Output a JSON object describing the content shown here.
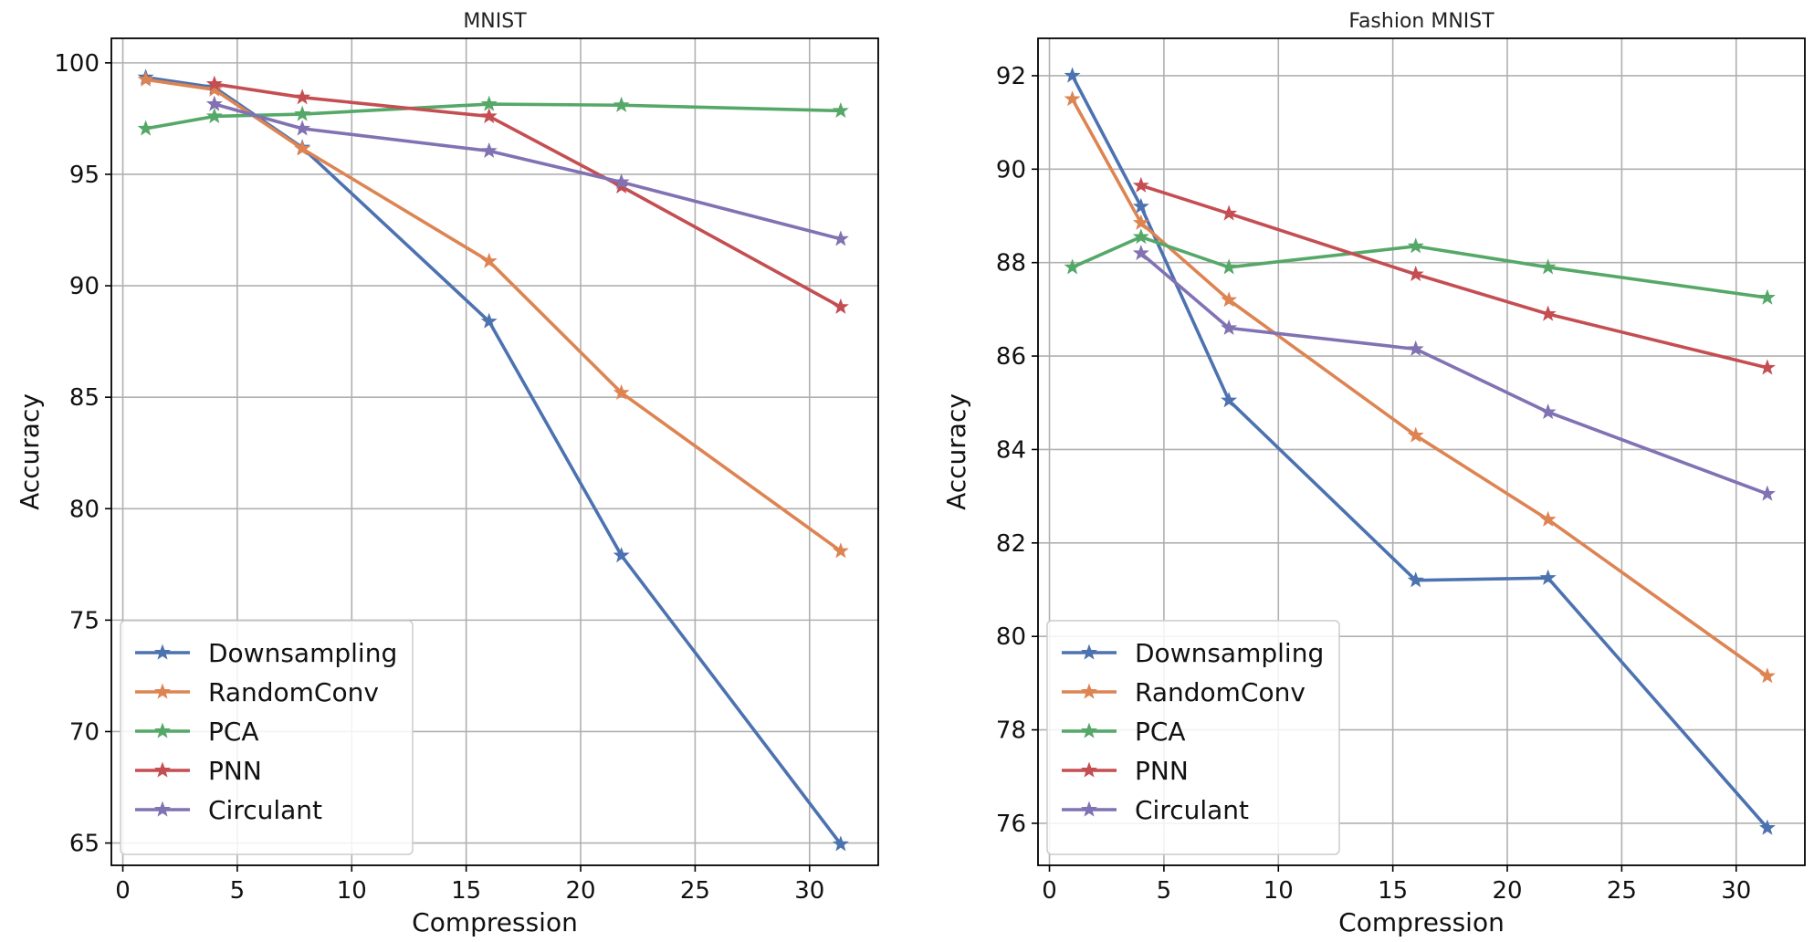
{
  "chart_data": [
    {
      "type": "line",
      "title": "MNIST",
      "xlabel": "Compression",
      "ylabel": "Accuracy",
      "xlim": [
        -0.5,
        33
      ],
      "ylim": [
        64,
        101.1
      ],
      "xticks": [
        0,
        5,
        10,
        15,
        20,
        25,
        30
      ],
      "yticks": [
        65,
        70,
        75,
        80,
        85,
        90,
        95,
        100
      ],
      "grid": true,
      "legend_position": "lower-left",
      "series": [
        {
          "name": "Downsampling",
          "color": "#4c72b0",
          "x": [
            1,
            4,
            7.84,
            16,
            21.78,
            31.36
          ],
          "y": [
            99.35,
            98.9,
            96.2,
            88.4,
            77.9,
            64.95
          ]
        },
        {
          "name": "RandomConv",
          "color": "#dd8452",
          "x": [
            1,
            4,
            7.84,
            16,
            21.78,
            31.36
          ],
          "y": [
            99.25,
            98.8,
            96.15,
            91.1,
            85.2,
            78.1
          ]
        },
        {
          "name": "PCA",
          "color": "#55a868",
          "x": [
            1,
            4,
            7.84,
            16,
            21.78,
            31.36
          ],
          "y": [
            97.05,
            97.6,
            97.7,
            98.15,
            98.1,
            97.85
          ]
        },
        {
          "name": "PNN",
          "color": "#c44e52",
          "x": [
            4,
            7.84,
            16,
            21.78,
            31.36
          ],
          "y": [
            99.05,
            98.45,
            97.6,
            94.45,
            89.05
          ]
        },
        {
          "name": "Circulant",
          "color": "#8172b3",
          "x": [
            4,
            7.84,
            16,
            21.78,
            31.36
          ],
          "y": [
            98.15,
            97.05,
            96.05,
            94.65,
            92.1
          ]
        }
      ]
    },
    {
      "type": "line",
      "title": "Fashion MNIST",
      "xlabel": "Compression",
      "ylabel": "Accuracy",
      "xlim": [
        -0.5,
        33
      ],
      "ylim": [
        75.1,
        92.8
      ],
      "xticks": [
        0,
        5,
        10,
        15,
        20,
        25,
        30
      ],
      "yticks": [
        76,
        78,
        80,
        82,
        84,
        86,
        88,
        90,
        92
      ],
      "grid": true,
      "legend_position": "lower-left",
      "series": [
        {
          "name": "Downsampling",
          "color": "#4c72b0",
          "x": [
            1,
            4,
            7.84,
            16,
            21.78,
            31.36
          ],
          "y": [
            92.0,
            89.2,
            85.05,
            81.2,
            81.25,
            75.9
          ]
        },
        {
          "name": "RandomConv",
          "color": "#dd8452",
          "x": [
            1,
            4,
            7.84,
            16,
            21.78,
            31.36
          ],
          "y": [
            91.5,
            88.85,
            87.2,
            84.3,
            82.5,
            79.15
          ]
        },
        {
          "name": "PCA",
          "color": "#55a868",
          "x": [
            1,
            4,
            7.84,
            16,
            21.78,
            31.36
          ],
          "y": [
            87.9,
            88.55,
            87.9,
            88.35,
            87.9,
            87.25
          ]
        },
        {
          "name": "PNN",
          "color": "#c44e52",
          "x": [
            4,
            7.84,
            16,
            21.78,
            31.36
          ],
          "y": [
            89.65,
            89.05,
            87.75,
            86.9,
            85.75
          ]
        },
        {
          "name": "Circulant",
          "color": "#8172b3",
          "x": [
            4,
            7.84,
            16,
            21.78,
            31.36
          ],
          "y": [
            88.2,
            86.6,
            86.15,
            84.8,
            83.05
          ]
        }
      ]
    }
  ]
}
